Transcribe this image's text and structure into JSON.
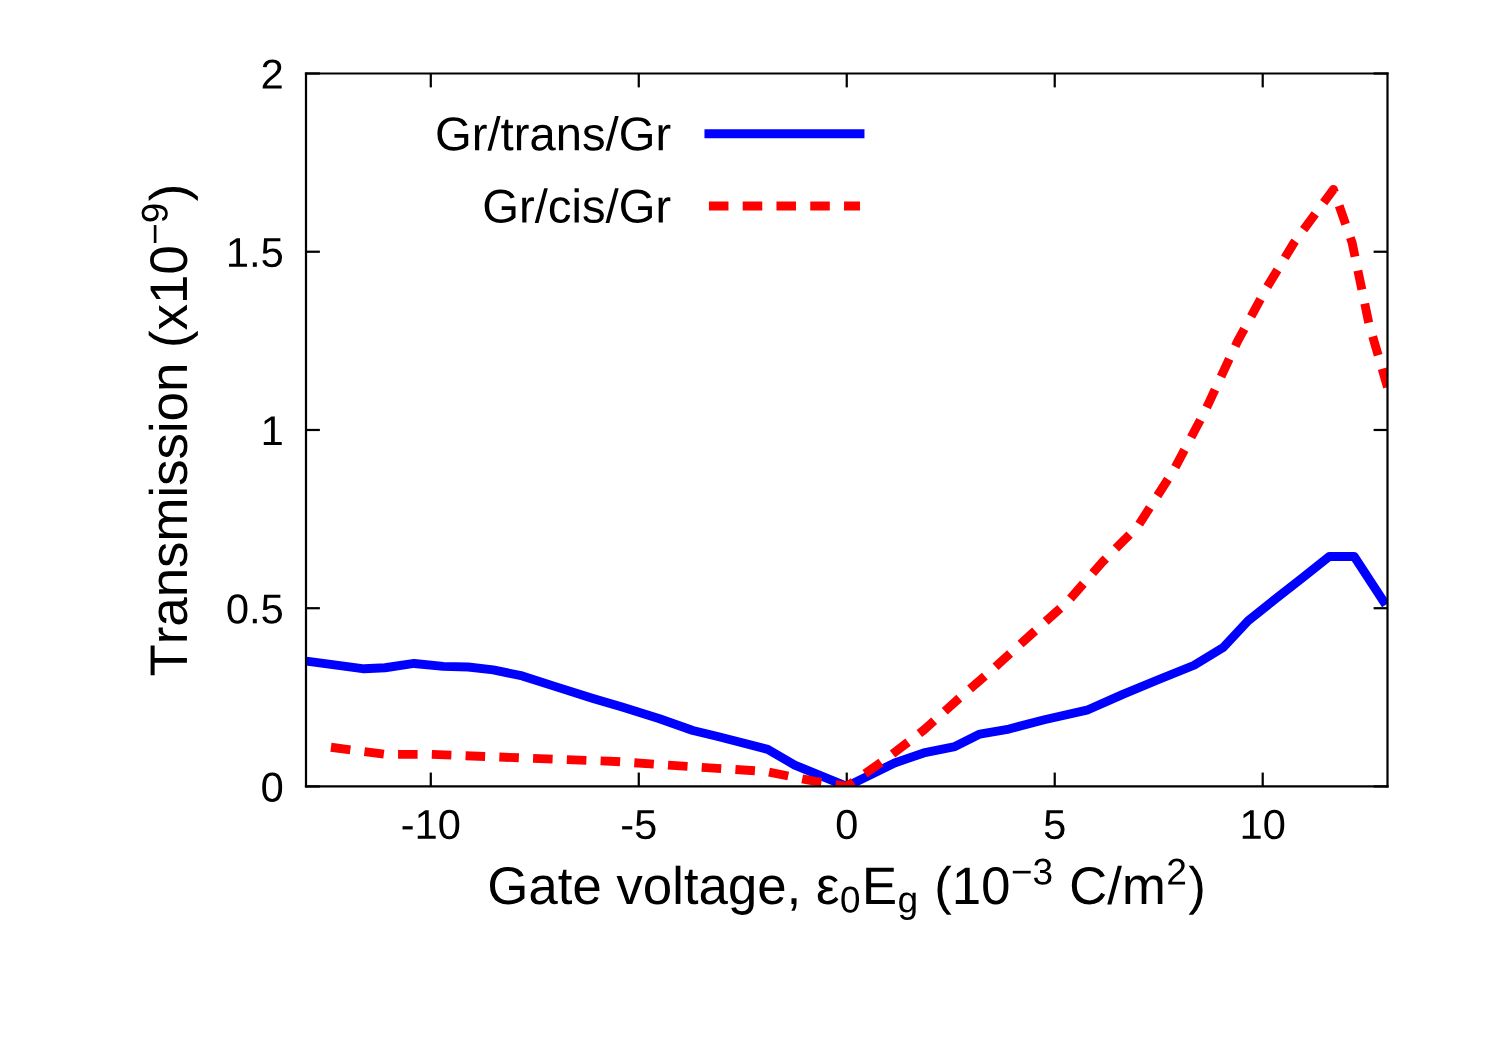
{
  "chart_data": {
    "type": "line",
    "xlabel": "Gate voltage, ε$_{0}$E$_{g}$ (10$^{−3}$ C/m$^{2}$)",
    "ylabel": "Transmission (x10$^{−9}$)",
    "xlim": [
      -13,
      13
    ],
    "ylim": [
      0,
      2
    ],
    "xticks": [
      -10,
      -5,
      0,
      5,
      10
    ],
    "yticks": [
      0,
      0.5,
      1,
      1.5,
      2
    ],
    "grid": false,
    "legend": "top left",
    "series": [
      {
        "name": "Gr/trans/Gr",
        "color": "#0000ff",
        "line_style": "solid",
        "x": [
          -12.9,
          -11.6,
          -11.1,
          -10.4,
          -9.7,
          -9.1,
          -8.5,
          -7.8,
          -7.0,
          -6.1,
          -5.4,
          -4.5,
          -3.7,
          -3.1,
          -1.9,
          -1.25,
          0,
          1.15,
          1.85,
          2.6,
          3.2,
          3.9,
          4.75,
          5.8,
          6.65,
          7.5,
          8.35,
          9.05,
          9.65,
          10.35,
          10.95,
          11.6,
          12.2,
          12.9
        ],
        "values": [
          0.35,
          0.33,
          0.333,
          0.345,
          0.337,
          0.335,
          0.327,
          0.31,
          0.28,
          0.247,
          0.223,
          0.19,
          0.157,
          0.14,
          0.104,
          0.06,
          0,
          0.066,
          0.094,
          0.112,
          0.147,
          0.161,
          0.187,
          0.215,
          0.259,
          0.3,
          0.34,
          0.39,
          0.465,
          0.53,
          0.585,
          0.645,
          0.645,
          0.52
        ]
      },
      {
        "name": "Gr/cis/Gr",
        "color": "#ff0000",
        "line_style": "dashed",
        "x": [
          -12.4,
          -11.1,
          -10.0,
          -7.8,
          -5.55,
          -3.3,
          -1.95,
          -0.75,
          0,
          1.0,
          1.85,
          2.7,
          3.55,
          4.4,
          5.3,
          6.15,
          7.0,
          7.85,
          8.6,
          9.4,
          10.1,
          10.75,
          11.7,
          12.15,
          12.55,
          13.0
        ],
        "values": [
          0.11,
          0.09,
          0.09,
          0.08,
          0.07,
          0.052,
          0.042,
          0.014,
          0,
          0.082,
          0.158,
          0.247,
          0.333,
          0.423,
          0.517,
          0.63,
          0.73,
          0.885,
          1.05,
          1.25,
          1.4,
          1.525,
          1.675,
          1.525,
          1.3,
          1.12
        ]
      }
    ]
  }
}
